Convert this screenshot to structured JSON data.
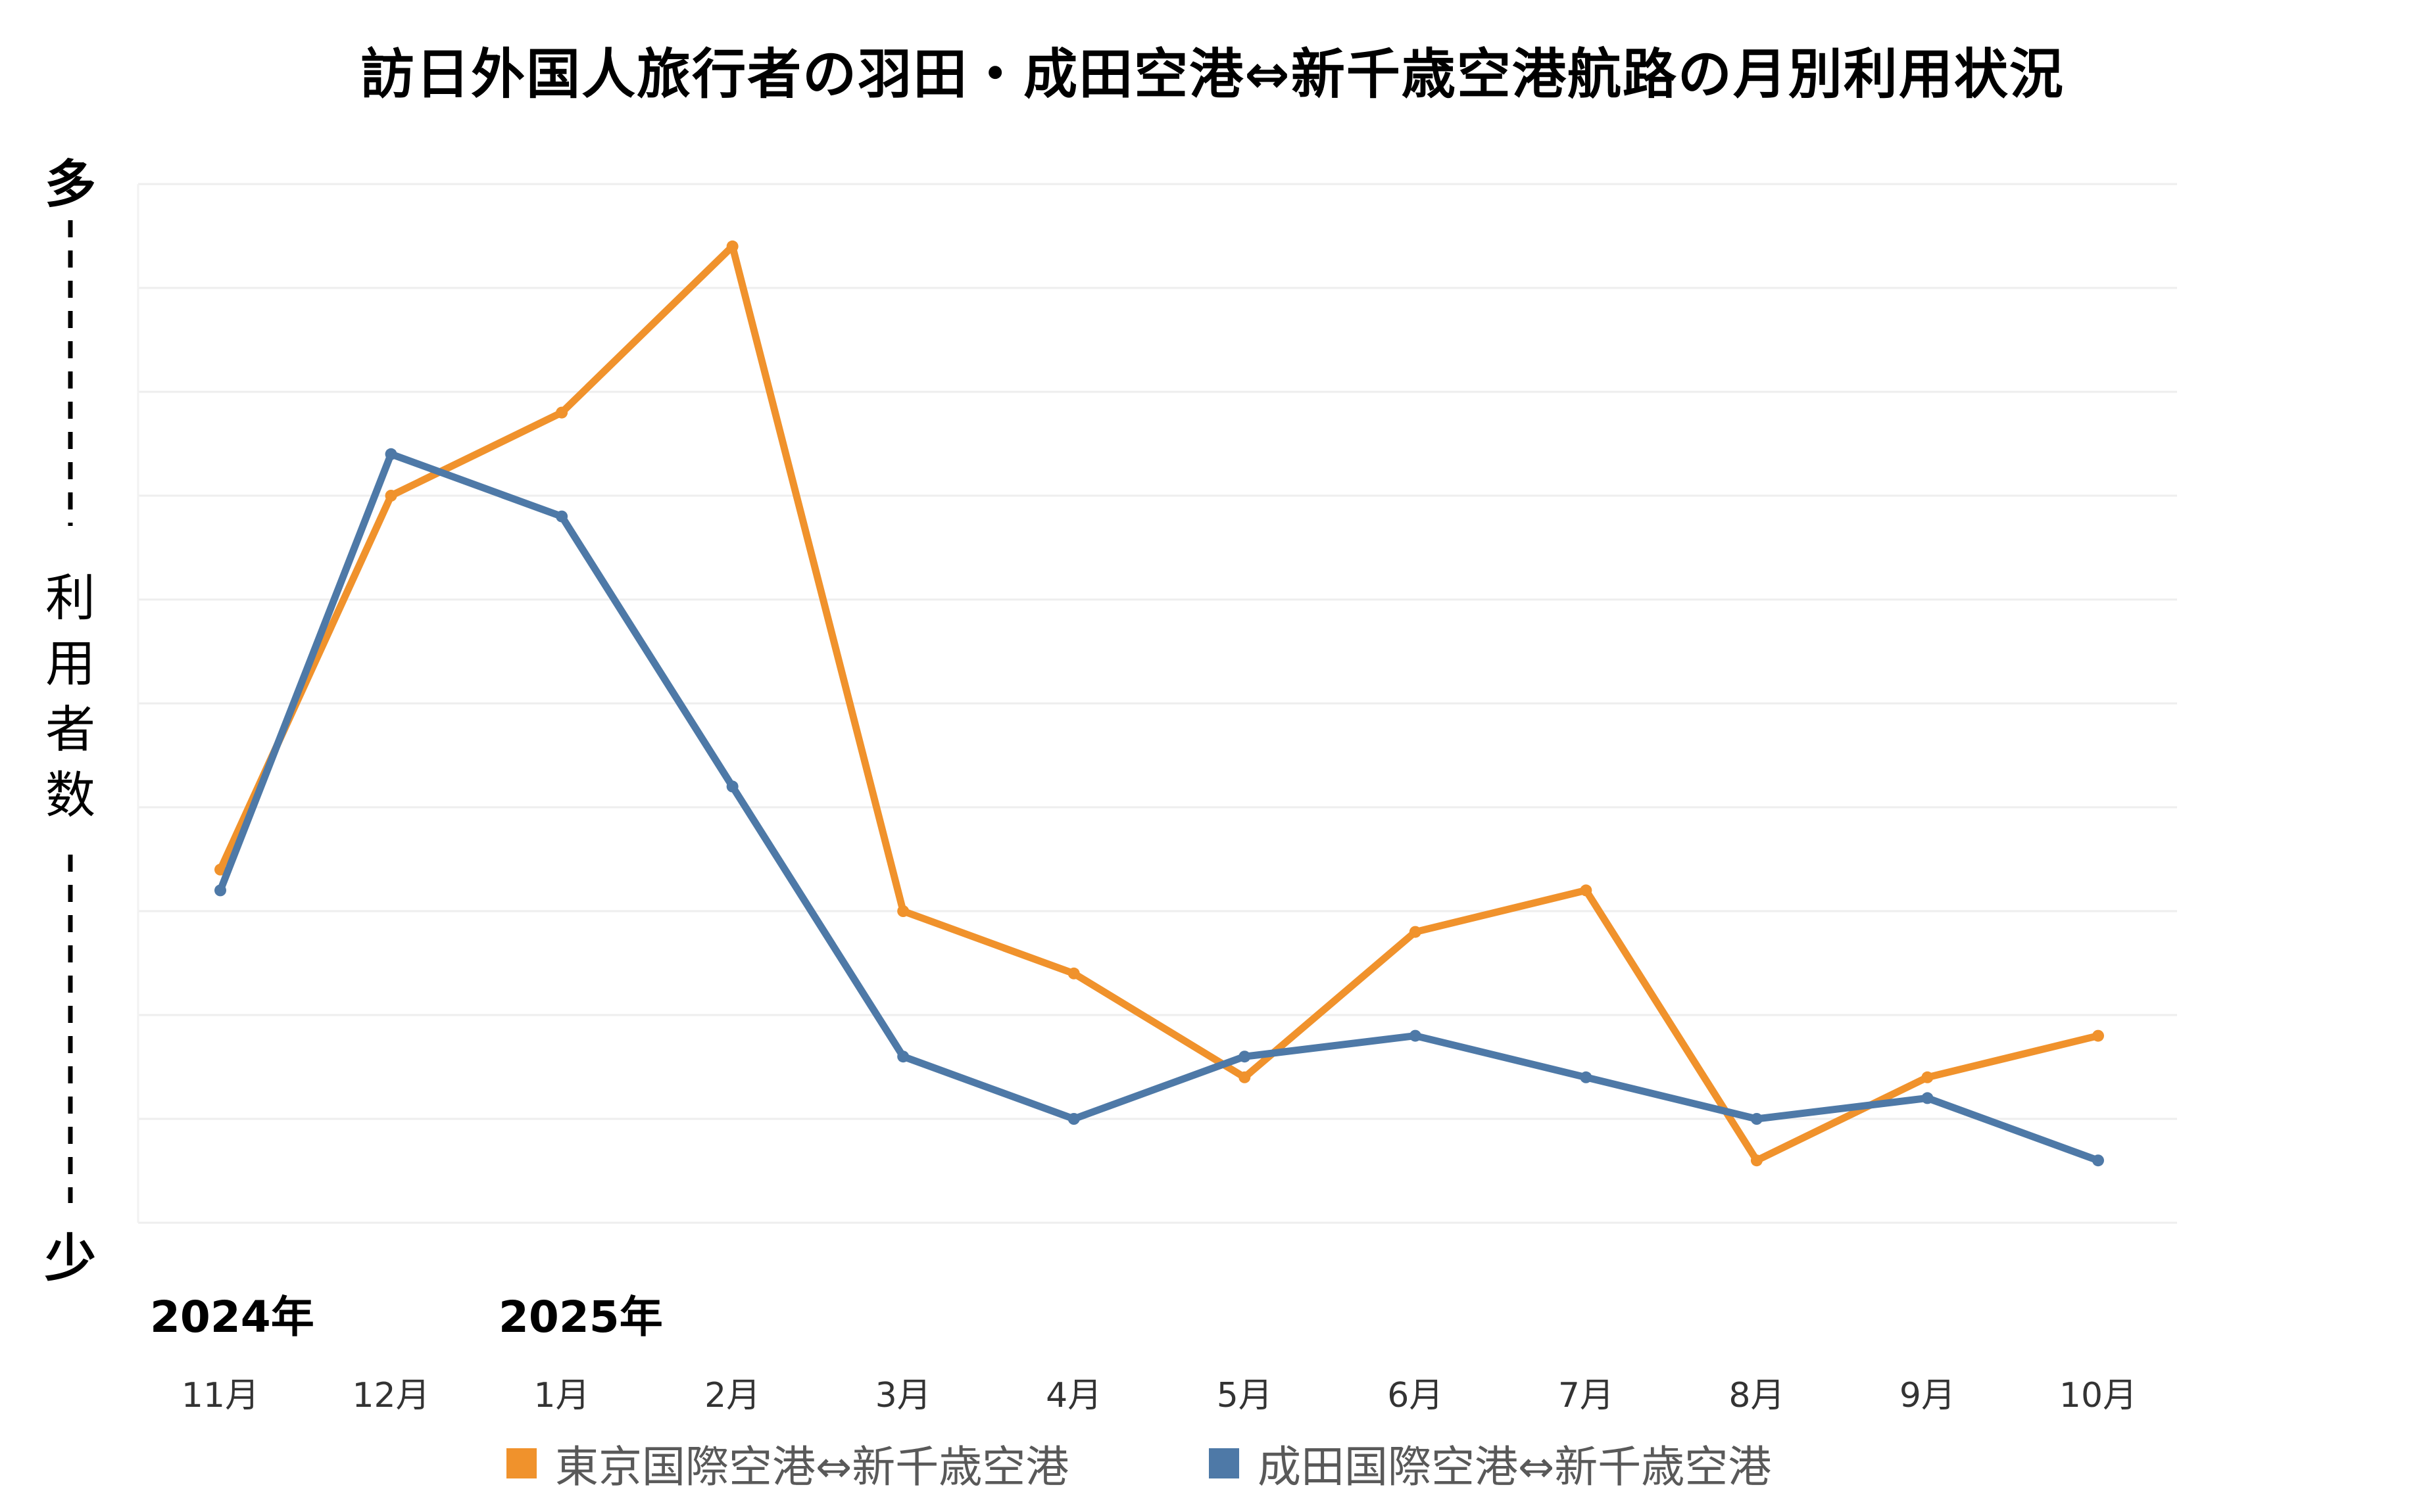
{
  "title": "訪日外国人旅行者の羽田・成田空港⇔新千歳空港航路の月別利用状況",
  "y_axis": {
    "top_label": "多",
    "label_chars": [
      "利",
      "用",
      "者",
      "数"
    ],
    "bottom_label": "少"
  },
  "years": {
    "start": "2024年",
    "second": "2025年"
  },
  "chart_data": {
    "type": "line",
    "categories": [
      "11月",
      "12月",
      "1月",
      "2月",
      "3月",
      "4月",
      "5月",
      "6月",
      "7月",
      "8月",
      "9月",
      "10月"
    ],
    "ylim": [
      0,
      10
    ],
    "grid": true,
    "y_ticks_shown": false,
    "legend_position": "bottom",
    "series": [
      {
        "name": "東京国際空港⇔新千歳空港",
        "color": "#f0922c",
        "values": [
          3.4,
          7.0,
          7.8,
          9.4,
          3.0,
          2.4,
          1.4,
          2.8,
          3.2,
          0.6,
          1.4,
          1.8
        ]
      },
      {
        "name": "成田国際空港⇔新千歳空港",
        "color": "#4e79a7",
        "values": [
          3.2,
          7.4,
          6.8,
          4.2,
          1.6,
          1.0,
          1.6,
          1.8,
          1.4,
          1.0,
          1.2,
          0.6
        ]
      }
    ]
  }
}
